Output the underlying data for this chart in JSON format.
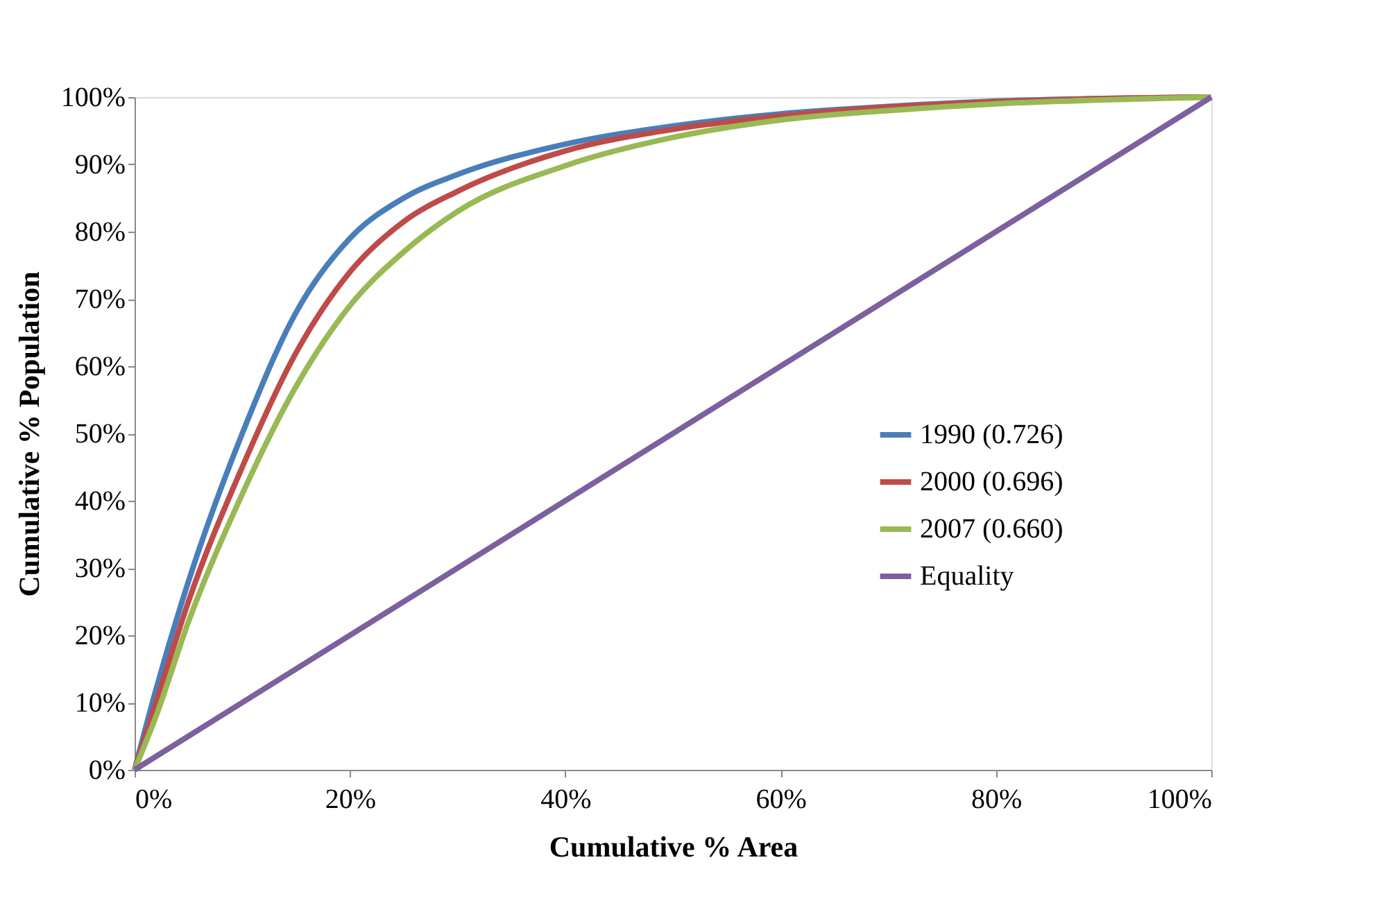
{
  "chart_data": {
    "type": "line",
    "xlabel": "Cumulative % Area",
    "ylabel": "Cumulative % Population",
    "x": [
      0,
      2,
      5,
      10,
      15,
      20,
      25,
      30,
      40,
      50,
      60,
      70,
      80,
      90,
      100
    ],
    "series": [
      {
        "name": "1990 (0.726)",
        "color": "#4a7ebb",
        "values": [
          0,
          12,
          28,
          50,
          68,
          79,
          85,
          88.5,
          93,
          95.7,
          97.5,
          98.6,
          99.4,
          99.8,
          100
        ]
      },
      {
        "name": "2000 (0.696)",
        "color": "#be4b48",
        "values": [
          0,
          10,
          25,
          45,
          62,
          74,
          81.5,
          86,
          92,
          95.2,
          97.2,
          98.5,
          99.3,
          99.8,
          100
        ]
      },
      {
        "name": "2007 (0.660)",
        "color": "#98b954",
        "values": [
          0,
          8,
          22,
          41,
          57,
          69,
          77,
          83,
          89.8,
          94,
          96.6,
          98,
          99,
          99.6,
          100
        ]
      },
      {
        "name": "Equality",
        "color": "#7d60a0",
        "x": [
          0,
          100
        ],
        "values": [
          0,
          100
        ]
      }
    ],
    "xlim": [
      0,
      100
    ],
    "ylim": [
      0,
      100
    ],
    "xticks": [
      {
        "value": 0,
        "label": "0%"
      },
      {
        "value": 20,
        "label": "20%"
      },
      {
        "value": 40,
        "label": "40%"
      },
      {
        "value": 60,
        "label": "60%"
      },
      {
        "value": 80,
        "label": "80%"
      },
      {
        "value": 100,
        "label": "100%"
      }
    ],
    "yticks": [
      {
        "value": 0,
        "label": "0%"
      },
      {
        "value": 10,
        "label": "10%"
      },
      {
        "value": 20,
        "label": "20%"
      },
      {
        "value": 30,
        "label": "30%"
      },
      {
        "value": 40,
        "label": "40%"
      },
      {
        "value": 50,
        "label": "50%"
      },
      {
        "value": 60,
        "label": "60%"
      },
      {
        "value": 70,
        "label": "70%"
      },
      {
        "value": 80,
        "label": "80%"
      },
      {
        "value": 90,
        "label": "90%"
      },
      {
        "value": 100,
        "label": "100%"
      }
    ],
    "grid": false,
    "legend": "right",
    "marker": "none",
    "line_style": "solid"
  }
}
